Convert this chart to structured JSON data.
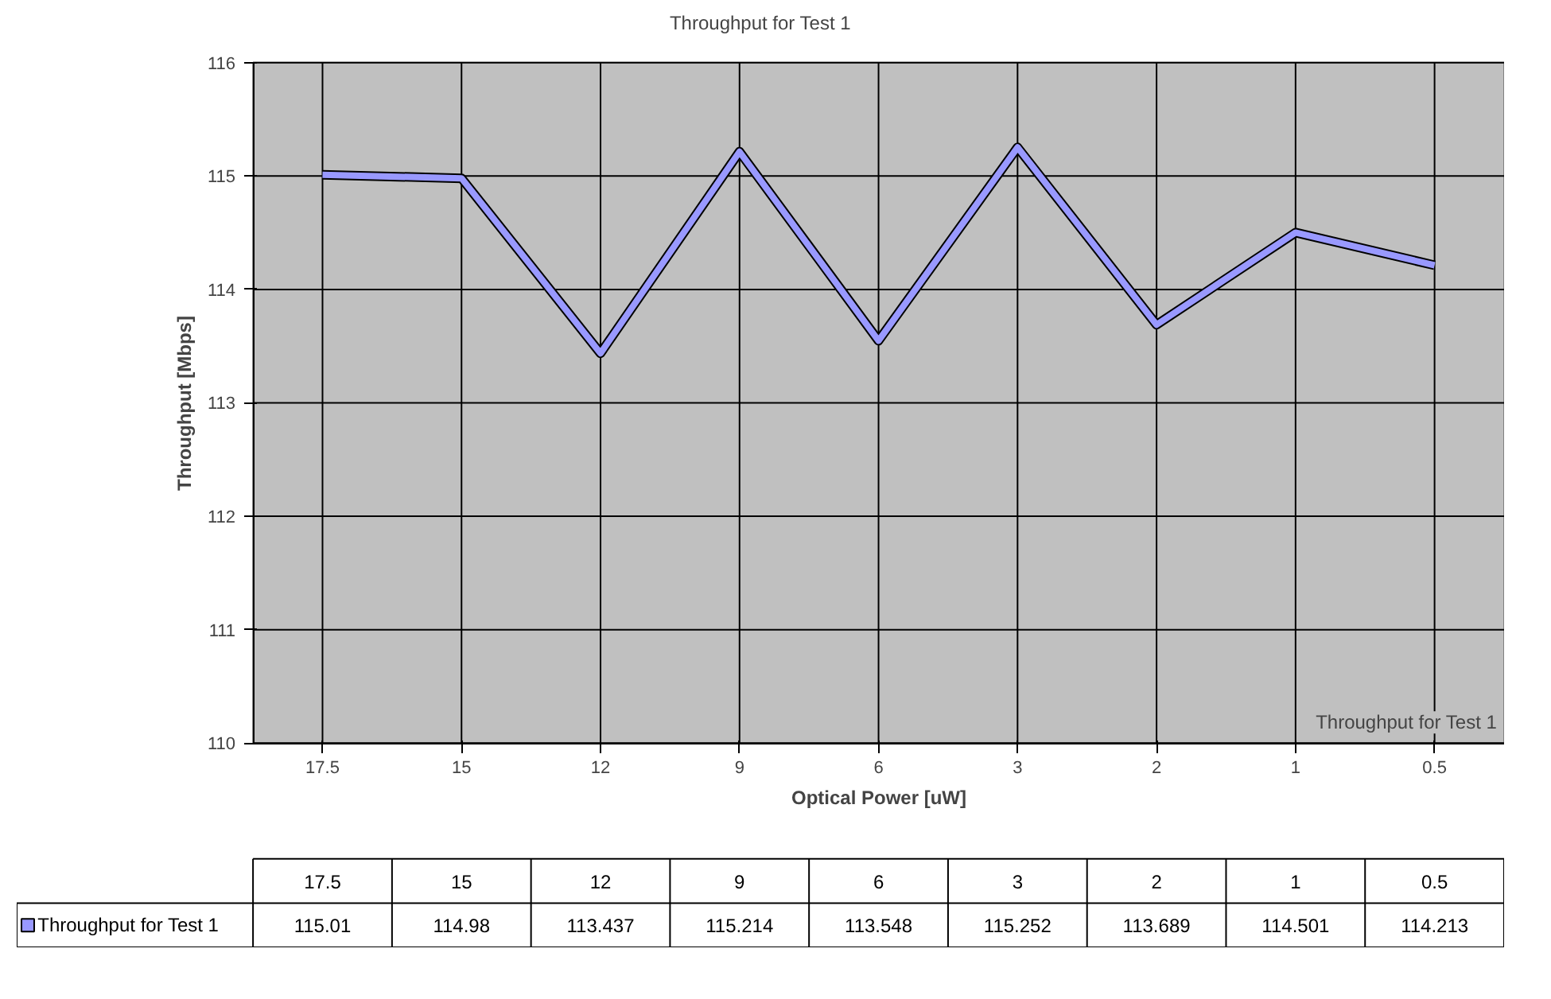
{
  "chart_data": {
    "type": "line",
    "title": "Throughput for Test 1",
    "xlabel": "Optical Power [uW]",
    "ylabel": "Throughput [Mbps]",
    "categories": [
      "17.5",
      "15",
      "12",
      "9",
      "6",
      "3",
      "2",
      "1",
      "0.5"
    ],
    "series": [
      {
        "name": "Throughput for Test 1",
        "color": "#9999ff",
        "values": [
          115.01,
          114.98,
          113.437,
          115.214,
          113.548,
          115.252,
          113.689,
          114.501,
          114.213
        ]
      }
    ],
    "ylim": [
      110,
      116
    ],
    "yticks": [
      110,
      111,
      112,
      113,
      114,
      115,
      116
    ],
    "grid": true,
    "data_labels": true,
    "marker": "none",
    "line_style": "solid"
  }
}
